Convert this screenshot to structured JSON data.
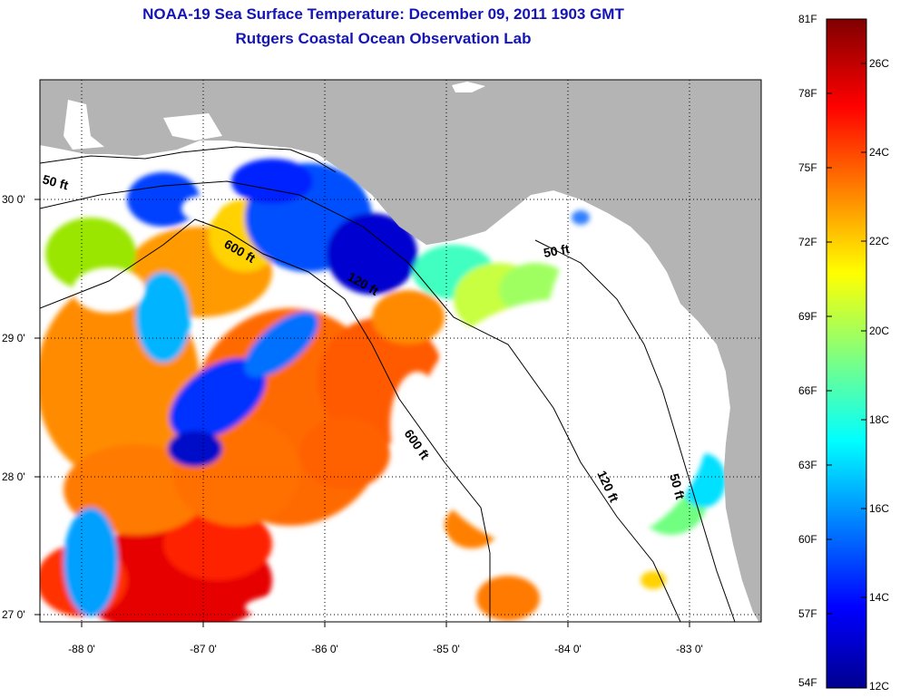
{
  "header": {
    "title": "NOAA-19 Sea Surface Temperature:  December 09, 2011 1903 GMT",
    "subtitle": "Rutgers Coastal Ocean Observation Lab"
  },
  "map": {
    "lon_ticks": [
      "-88 0'",
      "-87 0'",
      "-86 0'",
      "-85 0'",
      "-84 0'",
      "-83 0'"
    ],
    "lat_ticks": [
      "30 0'",
      "29 0'",
      "28 0'",
      "27 0'"
    ],
    "lon_range": [
      -88.35,
      -82.45
    ],
    "lat_range": [
      26.97,
      30.85
    ],
    "land_color": "#b4b4b4",
    "no_data_color": "#ffffff",
    "contours": [
      {
        "label": "50 ft"
      },
      {
        "label": "600 ft"
      },
      {
        "label": "120 ft"
      },
      {
        "label": "600 ft"
      },
      {
        "label": "50 ft"
      },
      {
        "label": "120 ft"
      },
      {
        "label": "50 ft"
      }
    ]
  },
  "colorbar": {
    "fahrenheit_labels": [
      "81F",
      "78F",
      "75F",
      "72F",
      "69F",
      "66F",
      "63F",
      "60F",
      "57F",
      "54F"
    ],
    "celsius_labels": [
      "26C",
      "24C",
      "22C",
      "20C",
      "18C",
      "16C",
      "14C",
      "12C"
    ],
    "colors": [
      "#00008f",
      "#0000ff",
      "#00ffff",
      "#ffff00",
      "#ff0000",
      "#800000"
    ]
  }
}
